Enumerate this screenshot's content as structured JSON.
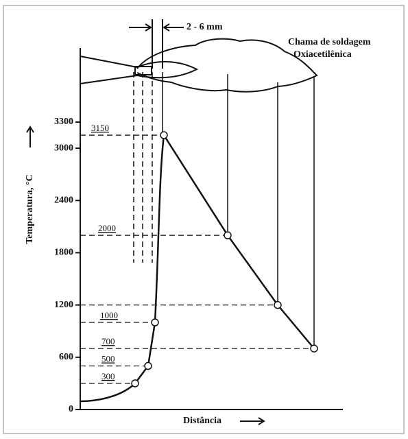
{
  "chart_data": {
    "type": "line",
    "y_label": "Temperatura, °C",
    "x_label": "Distância",
    "annotations": [
      "2 - 6 mm",
      "Chama de soldagem",
      "Oxiacetilênica"
    ],
    "ylim": [
      0,
      3300
    ],
    "yticks": [
      0,
      600,
      1200,
      1800,
      2400,
      3000,
      3300
    ],
    "series": [
      {
        "color": "#111111",
        "values": [
          300,
          500,
          1000,
          3150,
          2000,
          1200,
          700
        ]
      }
    ],
    "reference_levels": [
      3150,
      2000,
      1000,
      700,
      500,
      300
    ]
  }
}
